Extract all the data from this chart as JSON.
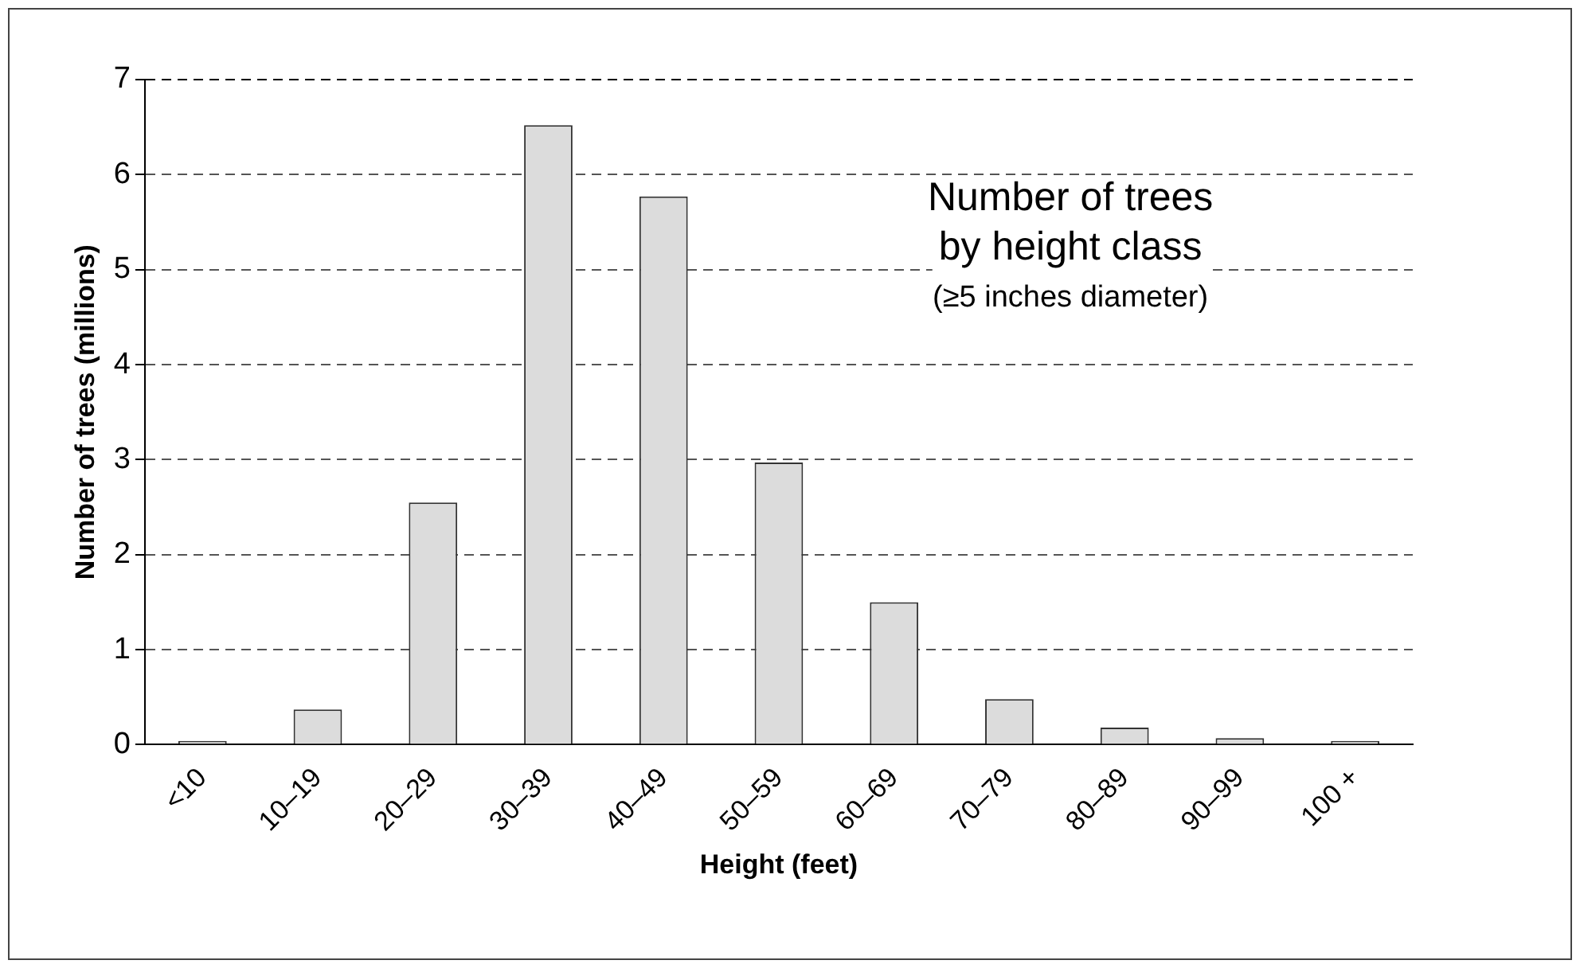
{
  "chart_data": {
    "type": "bar",
    "title": "Number of trees\nby height class",
    "subtitle": "(≥5 inches diameter)",
    "xlabel": "Height (feet)",
    "ylabel": "Number of trees (millions)",
    "categories": [
      "<10",
      "10–19",
      "20–29",
      "30–39",
      "40–49",
      "50–59",
      "60–69",
      "70–79",
      "80–89",
      "90–99",
      "100 +"
    ],
    "values": [
      0.04,
      0.37,
      2.55,
      6.52,
      5.77,
      2.97,
      1.5,
      0.48,
      0.18,
      0.07,
      0.04
    ],
    "color": "#dcdcdc",
    "ylim": [
      0,
      7
    ],
    "yticks": [
      0,
      1,
      2,
      3,
      4,
      5,
      6,
      7
    ],
    "grid": "y",
    "legend": false
  }
}
